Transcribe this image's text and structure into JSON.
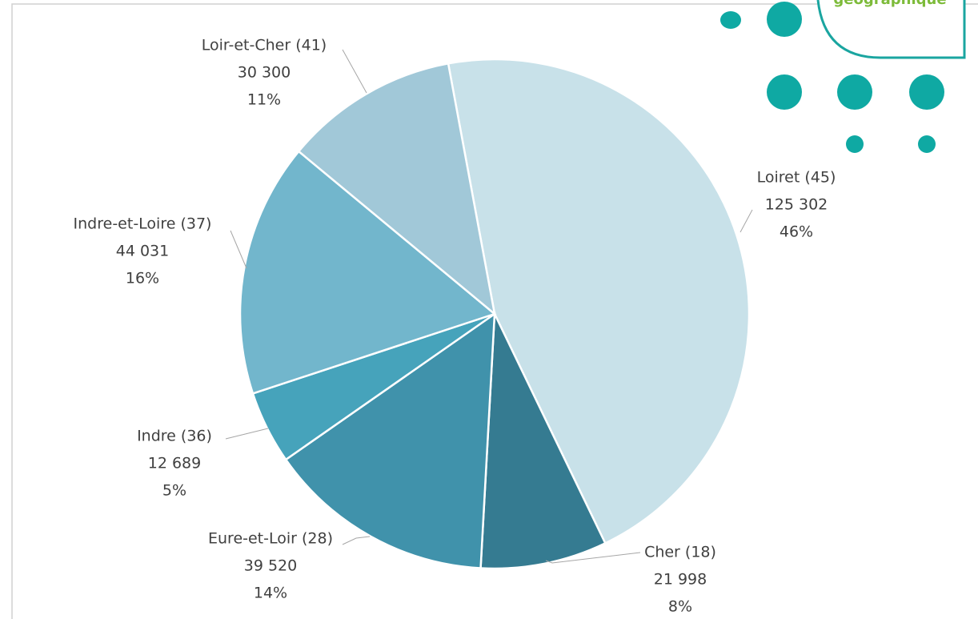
{
  "chart_data": {
    "type": "pie",
    "categories": [
      "Loiret (45)",
      "Cher (18)",
      "Eure-et-Loir (28)",
      "Indre (36)",
      "Indre-et-Loire (37)",
      "Loir-et-Cher (41)"
    ],
    "values": [
      125302,
      21998,
      39520,
      12689,
      44031,
      30300
    ],
    "value_labels": [
      "125 302",
      "21 998",
      "39 520",
      "12 689",
      "44 031",
      "30 300"
    ],
    "percent_labels": [
      "46%",
      "8%",
      "14%",
      "5%",
      "16%",
      "11%"
    ],
    "colors": [
      "#c8e1e9",
      "#357b91",
      "#4092ab",
      "#46a3bb",
      "#72b6cc",
      "#a1c8d8"
    ]
  },
  "logo": {
    "text": "géographique"
  }
}
